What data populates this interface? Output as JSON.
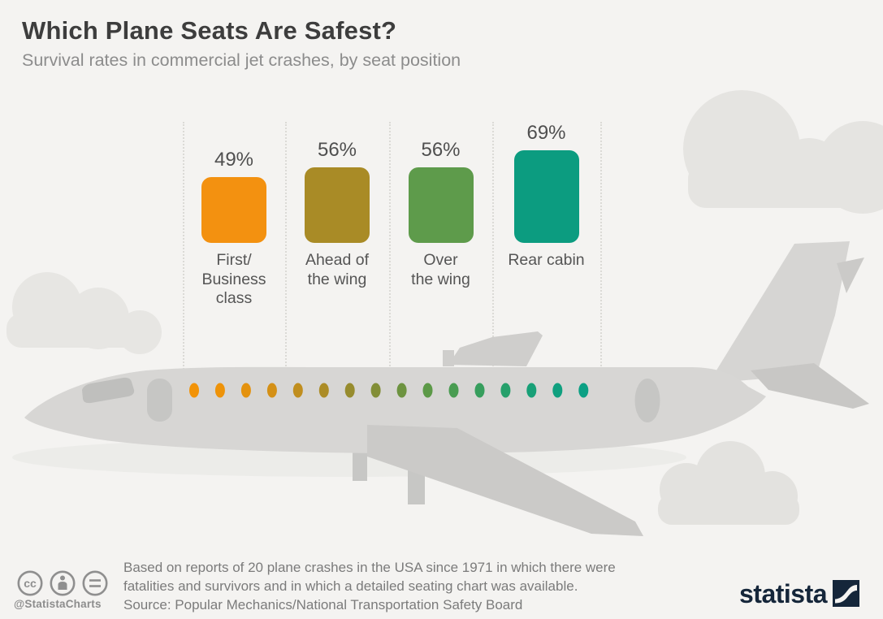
{
  "header": {
    "title": "Which Plane Seats Are Safest?",
    "subtitle": "Survival rates in commercial jet crashes, by seat position"
  },
  "chart_data": {
    "type": "bar",
    "title": "Which Plane Seats Are Safest?",
    "subtitle": "Survival rates in commercial jet crashes, by seat position",
    "categories": [
      "First/Business class",
      "Ahead of the wing",
      "Over the wing",
      "Rear cabin"
    ],
    "category_lines": [
      [
        "First/",
        "Business",
        "class"
      ],
      [
        "Ahead of",
        "the wing"
      ],
      [
        "Over",
        "the wing"
      ],
      [
        "Rear cabin"
      ]
    ],
    "values": [
      49,
      56,
      56,
      69
    ],
    "value_labels": [
      "49%",
      "56%",
      "56%",
      "69%"
    ],
    "unit": "%",
    "bar_colors": [
      "#F39110",
      "#A98B26",
      "#5E9B4B",
      "#0C9C80"
    ],
    "ylim": [
      0,
      100
    ],
    "legend": false,
    "grid": false
  },
  "plane": {
    "description": "gray airplane side-view silhouette with colored cabin windows and clouds",
    "body_color": "#D7D6D4",
    "cloud_color": "#E6E5E2",
    "seat_dot_colors": [
      "#F29307",
      "#EE9309",
      "#E4920E",
      "#D49016",
      "#C08E1E",
      "#AC8C26",
      "#978C2E",
      "#828E37",
      "#6D9340",
      "#5C9947",
      "#499C51",
      "#379E5D",
      "#26A06B",
      "#18A077",
      "#10A07F",
      "#0CA084"
    ]
  },
  "footer": {
    "note_line1": "Based on reports of 20 plane crashes in the USA since 1971 in which there were",
    "note_line2": "fatalities and survivors and in which a detailed seating chart was available.",
    "source": "Source: Popular Mechanics/National Transportation Safety Board",
    "handle": "@StatistaCharts",
    "license_icons": [
      "cc-icon",
      "attribution-icon",
      "equals-icon"
    ],
    "brand": "statista",
    "brand_color": "#15263A"
  }
}
